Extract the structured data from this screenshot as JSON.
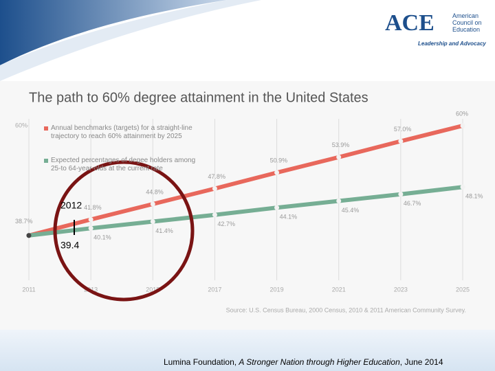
{
  "header": {
    "logo": "ACE",
    "org_name": "American Council on Education",
    "tagline": "Leadership and Advocacy"
  },
  "chart_data": {
    "type": "line",
    "title": "The path to 60% degree attainment in the United States",
    "x": [
      2011,
      2013,
      2015,
      2017,
      2019,
      2021,
      2023,
      2025
    ],
    "xlim": [
      2011,
      2025
    ],
    "xticks": [
      2011,
      2013,
      2015,
      2017,
      2019,
      2021,
      2023,
      2025
    ],
    "ylim": [
      30,
      60
    ],
    "yticks": [
      {
        "value": 60,
        "label": "60%"
      }
    ],
    "grid": true,
    "series": [
      {
        "name": "Annual benchmarks (targets) for a straight-line trajectory to reach 60% attainment by 2025",
        "color": "#e8685c",
        "values": [
          38.7,
          41.8,
          44.8,
          47.8,
          50.9,
          53.9,
          57.0,
          60
        ],
        "value_labels": [
          "38.7%",
          "41.8%",
          "44.8%",
          "47.8%",
          "50.9%",
          "53.9%",
          "57.0%",
          "60%"
        ]
      },
      {
        "name": "Expected percentages of degee holders among 25-to 64-year-olds at the current rate",
        "color": "#76ae94",
        "values": [
          38.7,
          40.1,
          41.4,
          42.7,
          44.1,
          45.4,
          46.7,
          48.1
        ],
        "value_labels": [
          null,
          "40.1%",
          "41.4%",
          "42.7%",
          "44.1%",
          "45.4%",
          "46.7%",
          "48.1%"
        ]
      }
    ],
    "source": "Source: U.S. Census Bureau, 2000 Census, 2010 & 2011 American Community Survey.",
    "annotations": [
      "2012",
      "39.4"
    ]
  },
  "footer": {
    "before": "Lumina Foundation, ",
    "italic": "A Stronger Nation through Higher Education",
    "after": ", June 2014"
  }
}
